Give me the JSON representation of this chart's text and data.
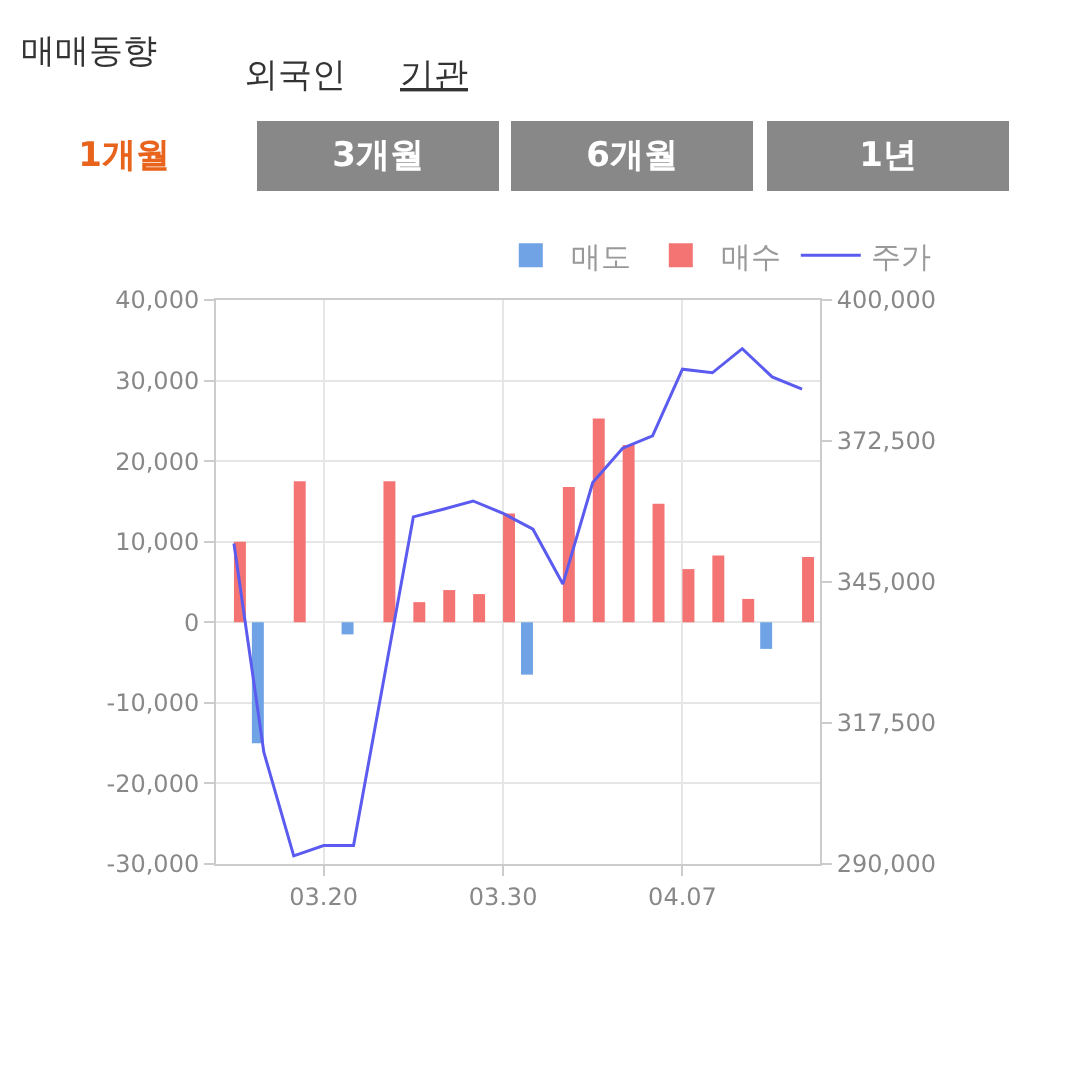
{
  "chart_data": {
    "type": "bar",
    "title": "매매동향",
    "annotations": [
      "외국인",
      "기관",
      "1개월",
      "3개월",
      "6개월",
      "1년"
    ],
    "categories": [
      null,
      null,
      null,
      "03.20",
      null,
      null,
      null,
      null,
      null,
      "03.30",
      null,
      null,
      null,
      null,
      null,
      "04.07",
      null,
      null,
      null,
      null
    ],
    "series": [
      {
        "name": "매도",
        "color": "#6fa3e6",
        "values": [
          0,
          -15000,
          0,
          0,
          -1500,
          0,
          0,
          0,
          0,
          0,
          -6500,
          0,
          0,
          0,
          0,
          0,
          0,
          0,
          -3300,
          0
        ]
      },
      {
        "name": "매수",
        "color": "#f47474",
        "values": [
          10000,
          0,
          17500,
          0,
          0,
          17500,
          2500,
          4000,
          3500,
          13500,
          0,
          16800,
          25300,
          22000,
          14700,
          6600,
          8300,
          2900,
          0,
          8100
        ]
      },
      {
        "name": "주가",
        "type": "line",
        "axis": "y2",
        "color": "#5b5bef",
        "values": [
          352500,
          311800,
          291600,
          293600,
          293600,
          325600,
          357700,
          359200,
          360800,
          358400,
          355300,
          344600,
          364400,
          371100,
          373500,
          386500,
          385800,
          390500,
          385000,
          382600
        ]
      }
    ],
    "ylim": [
      -30000,
      40000
    ],
    "yticks": [
      {
        "value": -30000,
        "label": "-30,000"
      },
      {
        "value": -20000,
        "label": "-20,000"
      },
      {
        "value": -10000,
        "label": "-10,000"
      },
      0,
      {
        "value": 10000,
        "label": "10,000"
      },
      {
        "value": 20000,
        "label": "20,000"
      },
      {
        "value": 30000,
        "label": "30,000"
      },
      {
        "value": 40000,
        "label": "40,000"
      }
    ],
    "y2lim": [
      290000,
      400000
    ],
    "y2ticks": [
      {
        "value": 290000,
        "label": "290,000"
      },
      {
        "value": 317500,
        "label": "317,500"
      },
      {
        "value": 345000,
        "label": "345,000"
      },
      {
        "value": 372500,
        "label": "372,500"
      },
      {
        "value": 400000,
        "label": "400,000"
      }
    ],
    "grid": true,
    "legend": "top right",
    "marker": "none"
  }
}
